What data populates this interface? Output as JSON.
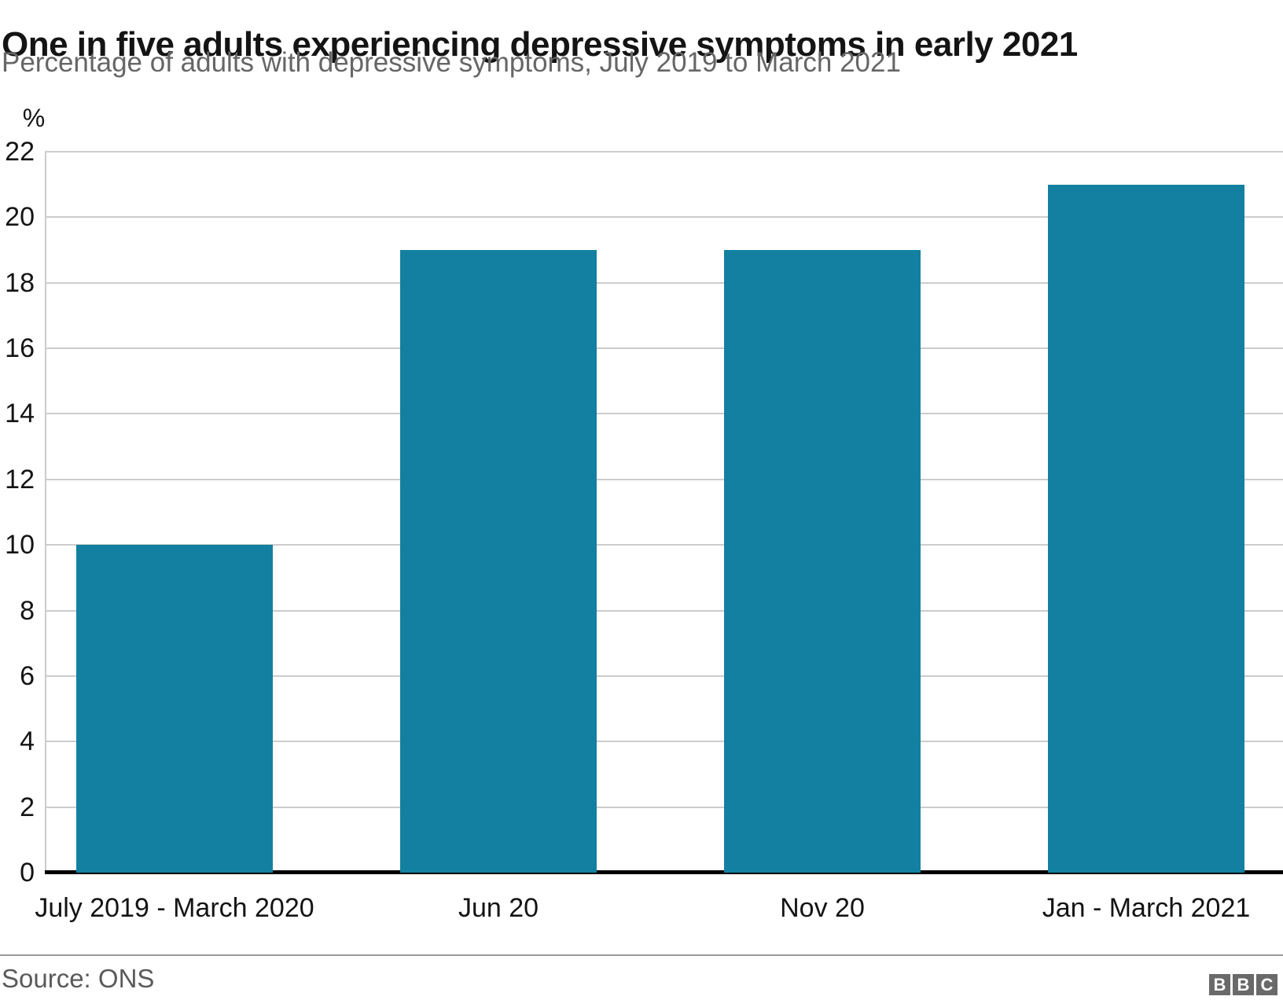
{
  "header": {
    "title": "One in five adults experiencing depressive symptoms in early 2021",
    "subtitle": "Percentage of adults with depressive symptoms, July 2019 to March 2021"
  },
  "chart_data": {
    "type": "bar",
    "title": "One in five adults experiencing depressive symptoms in early 2021",
    "subtitle": "Percentage of adults with depressive symptoms, July 2019 to March 2021",
    "unit_label": "%",
    "categories": [
      "July 2019 - March 2020",
      "Jun 20",
      "Nov 20",
      "Jan - March 2021"
    ],
    "values": [
      10,
      19,
      19,
      21
    ],
    "y_ticks": [
      0,
      2,
      4,
      6,
      8,
      10,
      12,
      14,
      16,
      18,
      20,
      22
    ],
    "ylim": [
      0,
      22
    ],
    "xlabel": "",
    "ylabel": "%",
    "grid": "horizontal",
    "legend": "none",
    "bar_color": "#1380a1"
  },
  "footer": {
    "source": "Source: ONS",
    "logo_letters": [
      "B",
      "B",
      "C"
    ]
  },
  "colors": {
    "bar": "#1380a1",
    "gridline": "#cccccc",
    "axis_baseline": "#000000",
    "title_text": "#141414",
    "subtitle_text": "#666666",
    "tick_text": "#141414",
    "source_text": "#5a5a5a",
    "divider": "#999999",
    "logo_background": "#696969",
    "logo_letter": "#ffffff"
  }
}
